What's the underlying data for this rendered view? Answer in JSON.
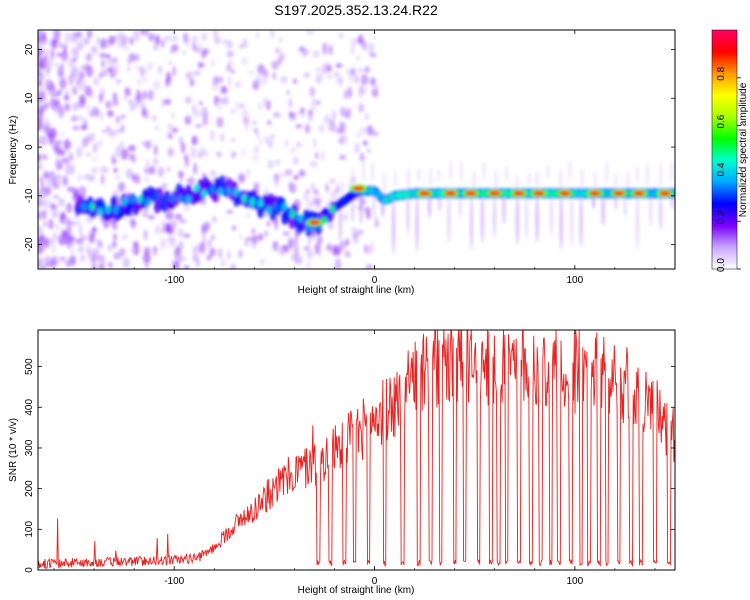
{
  "chart_data": [
    {
      "type": "heatmap",
      "title": "S197.2025.352.13.24.R22",
      "xlabel": "Height of straight line (km)",
      "ylabel": "Frequency (Hz)",
      "xlim": [
        -168,
        150
      ],
      "ylim": [
        -25,
        24
      ],
      "xticks": [
        -100,
        0,
        100
      ],
      "xtick_labels": [
        "-100",
        "0",
        "100"
      ],
      "yticks": [
        -20,
        -10,
        0,
        10,
        20
      ],
      "ytick_labels": [
        "-20",
        "-10",
        "0",
        "10",
        "20"
      ],
      "colorbar": {
        "label": "Normalized spectral amplitude",
        "range": [
          0,
          1
        ],
        "ticks": [
          0,
          0.2,
          0.4,
          0.6,
          0.8
        ],
        "tick_labels": [
          "0.0",
          "0.2",
          "0.4",
          "0.6",
          "0.8"
        ],
        "colors": [
          "#ffffff",
          "#c9a6ff",
          "#7a00ff",
          "#0000ff",
          "#00a6ff",
          "#00ffcc",
          "#00ff00",
          "#aaff00",
          "#ffff00",
          "#ff9900",
          "#ff0000",
          "#ff0066"
        ]
      },
      "ridge": [
        [
          -145,
          -12
        ],
        [
          -130,
          -12.5
        ],
        [
          -115,
          -11
        ],
        [
          -100,
          -10.5
        ],
        [
          -85,
          -9
        ],
        [
          -75,
          -8
        ],
        [
          -65,
          -11
        ],
        [
          -55,
          -12
        ],
        [
          -45,
          -13
        ],
        [
          -38,
          -15
        ],
        [
          -30,
          -16
        ],
        [
          -22,
          -13
        ],
        [
          -15,
          -11
        ],
        [
          -8,
          -9
        ],
        [
          0,
          -9
        ],
        [
          5,
          -11
        ],
        [
          10,
          -10
        ],
        [
          20,
          -9.5
        ],
        [
          40,
          -9.5
        ],
        [
          60,
          -9.5
        ],
        [
          80,
          -9.5
        ],
        [
          100,
          -9.5
        ],
        [
          120,
          -9.5
        ],
        [
          148,
          -9.5
        ]
      ],
      "ridge_peaks": [
        [
          -30,
          -15.5
        ],
        [
          -8,
          -8.5
        ],
        [
          25,
          -9.5
        ],
        [
          38,
          -9.5
        ],
        [
          48,
          -9.5
        ],
        [
          60,
          -9.5
        ],
        [
          72,
          -9.5
        ],
        [
          82,
          -9.5
        ],
        [
          95,
          -9.5
        ],
        [
          110,
          -9.5
        ],
        [
          122,
          -9.5
        ],
        [
          132,
          -9.5
        ],
        [
          145,
          -9.5
        ]
      ]
    },
    {
      "type": "line",
      "xlabel": "Height of straight line (km)",
      "ylabel": "SNR (10 * v/v)",
      "xlim": [
        -168,
        150
      ],
      "ylim": [
        0,
        590
      ],
      "xticks": [
        -100,
        0,
        100
      ],
      "xtick_labels": [
        "-100",
        "0",
        "100"
      ],
      "yticks": [
        0,
        100,
        200,
        300,
        400,
        500
      ],
      "ytick_labels": [
        "0",
        "100",
        "200",
        "300",
        "400",
        "500"
      ],
      "color": "#e8201e",
      "envelope": [
        [
          -168,
          15
        ],
        [
          -130,
          20
        ],
        [
          -100,
          25
        ],
        [
          -88,
          30
        ],
        [
          -80,
          55
        ],
        [
          -70,
          110
        ],
        [
          -60,
          150
        ],
        [
          -50,
          200
        ],
        [
          -40,
          240
        ],
        [
          -30,
          260
        ],
        [
          -20,
          300
        ],
        [
          -10,
          330
        ],
        [
          0,
          370
        ],
        [
          10,
          410
        ],
        [
          20,
          460
        ],
        [
          30,
          500
        ],
        [
          40,
          510
        ],
        [
          60,
          510
        ],
        [
          80,
          500
        ],
        [
          100,
          490
        ],
        [
          120,
          470
        ],
        [
          130,
          440
        ],
        [
          140,
          400
        ],
        [
          150,
          320
        ]
      ],
      "dropouts": [
        -28,
        -22,
        -15,
        -10,
        -3,
        5,
        14,
        22,
        28,
        33,
        40,
        45,
        52,
        58,
        62,
        66,
        72,
        78,
        83,
        88,
        92,
        98,
        103,
        107,
        112,
        116,
        122,
        128,
        133,
        140,
        147
      ]
    }
  ]
}
